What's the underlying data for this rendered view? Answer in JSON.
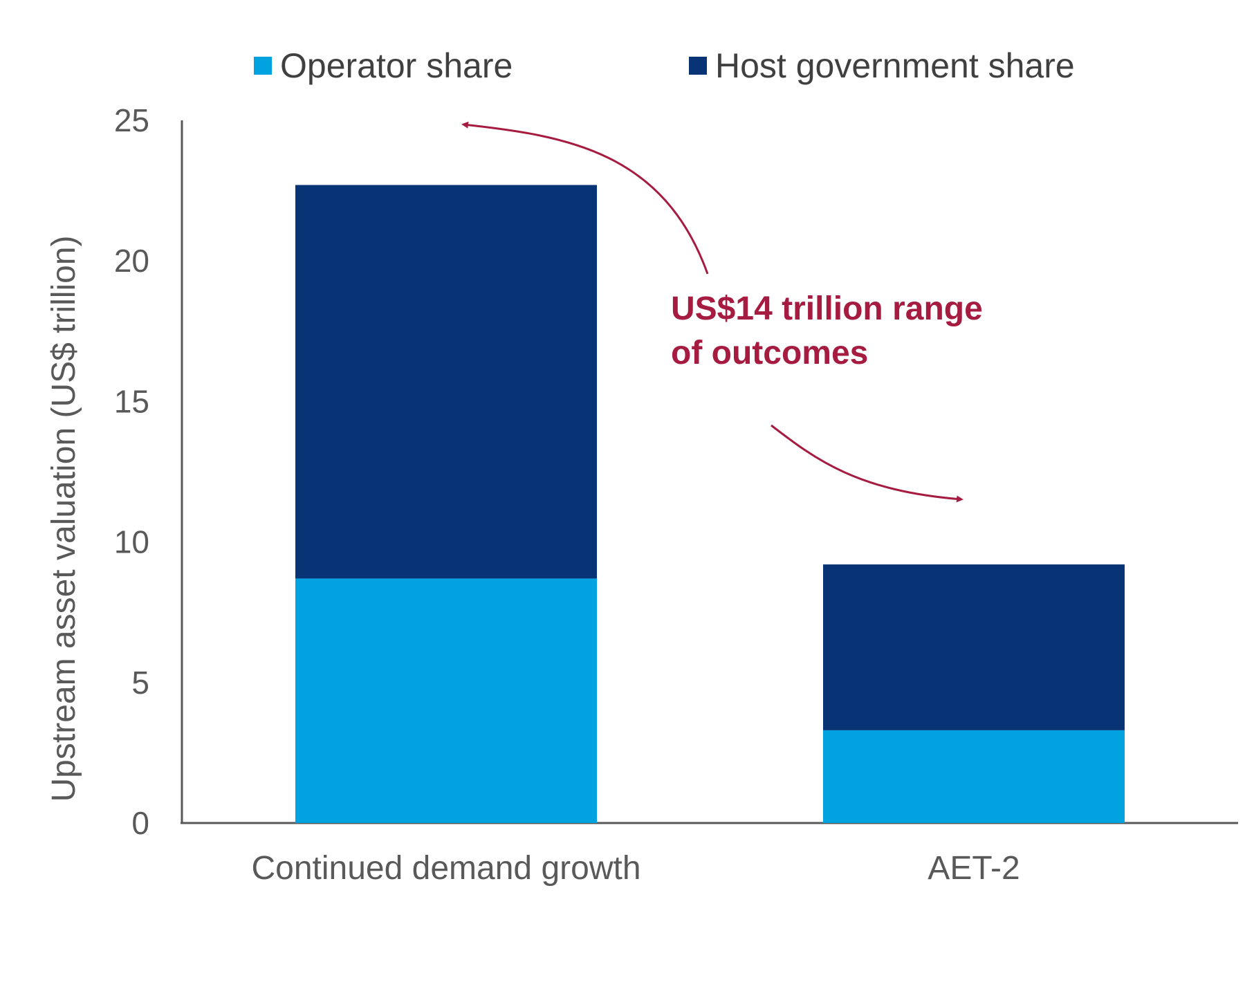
{
  "chart_data": {
    "type": "bar",
    "stacked": true,
    "categories": [
      "Continued demand growth",
      "AET-2"
    ],
    "series": [
      {
        "name": "Operator share",
        "values": [
          8.7,
          3.3
        ],
        "color": "#00a3e0"
      },
      {
        "name": "Host government share",
        "values": [
          14.0,
          5.9
        ],
        "color": "#083476"
      }
    ],
    "title": "",
    "xlabel": "",
    "ylabel": "Upstream asset valuation (US$ trillion)",
    "ylim": [
      0,
      25
    ],
    "yticks": [
      0,
      5,
      10,
      15,
      20,
      25
    ],
    "grid": false,
    "legend_position": "top",
    "annotation": {
      "lines": [
        "US$14 trillion range",
        "of outcomes"
      ],
      "color": "#a51c40"
    }
  }
}
